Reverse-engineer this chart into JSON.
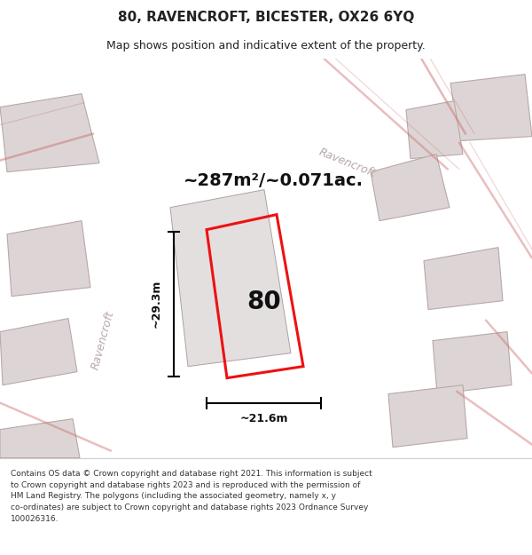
{
  "title": "80, RAVENCROFT, BICESTER, OX26 6YQ",
  "subtitle": "Map shows position and indicative extent of the property.",
  "area_text": "~287m²/~0.071ac.",
  "dim_width": "~21.6m",
  "dim_height": "~29.3m",
  "number_label": "80",
  "footer_lines": [
    "Contains OS data © Crown copyright and database right 2021. This information is subject",
    "to Crown copyright and database rights 2023 and is reproduced with the permission of",
    "HM Land Registry. The polygons (including the associated geometry, namely x, y",
    "co-ordinates) are subject to Crown copyright and database rights 2023 Ordnance Survey",
    "100026316."
  ],
  "map_bg": "#f0ebe9",
  "road_color": "#d07070",
  "block_color": "#ddd5d5",
  "block_edge": "#b8a8a8",
  "parcel_color": "#e4dfdf",
  "parcel_edge": "#b0a0a0",
  "red_outline": "#ee1111",
  "street_label_color": "#b8a8a8",
  "title_color": "#222222",
  "footer_color": "#333333"
}
